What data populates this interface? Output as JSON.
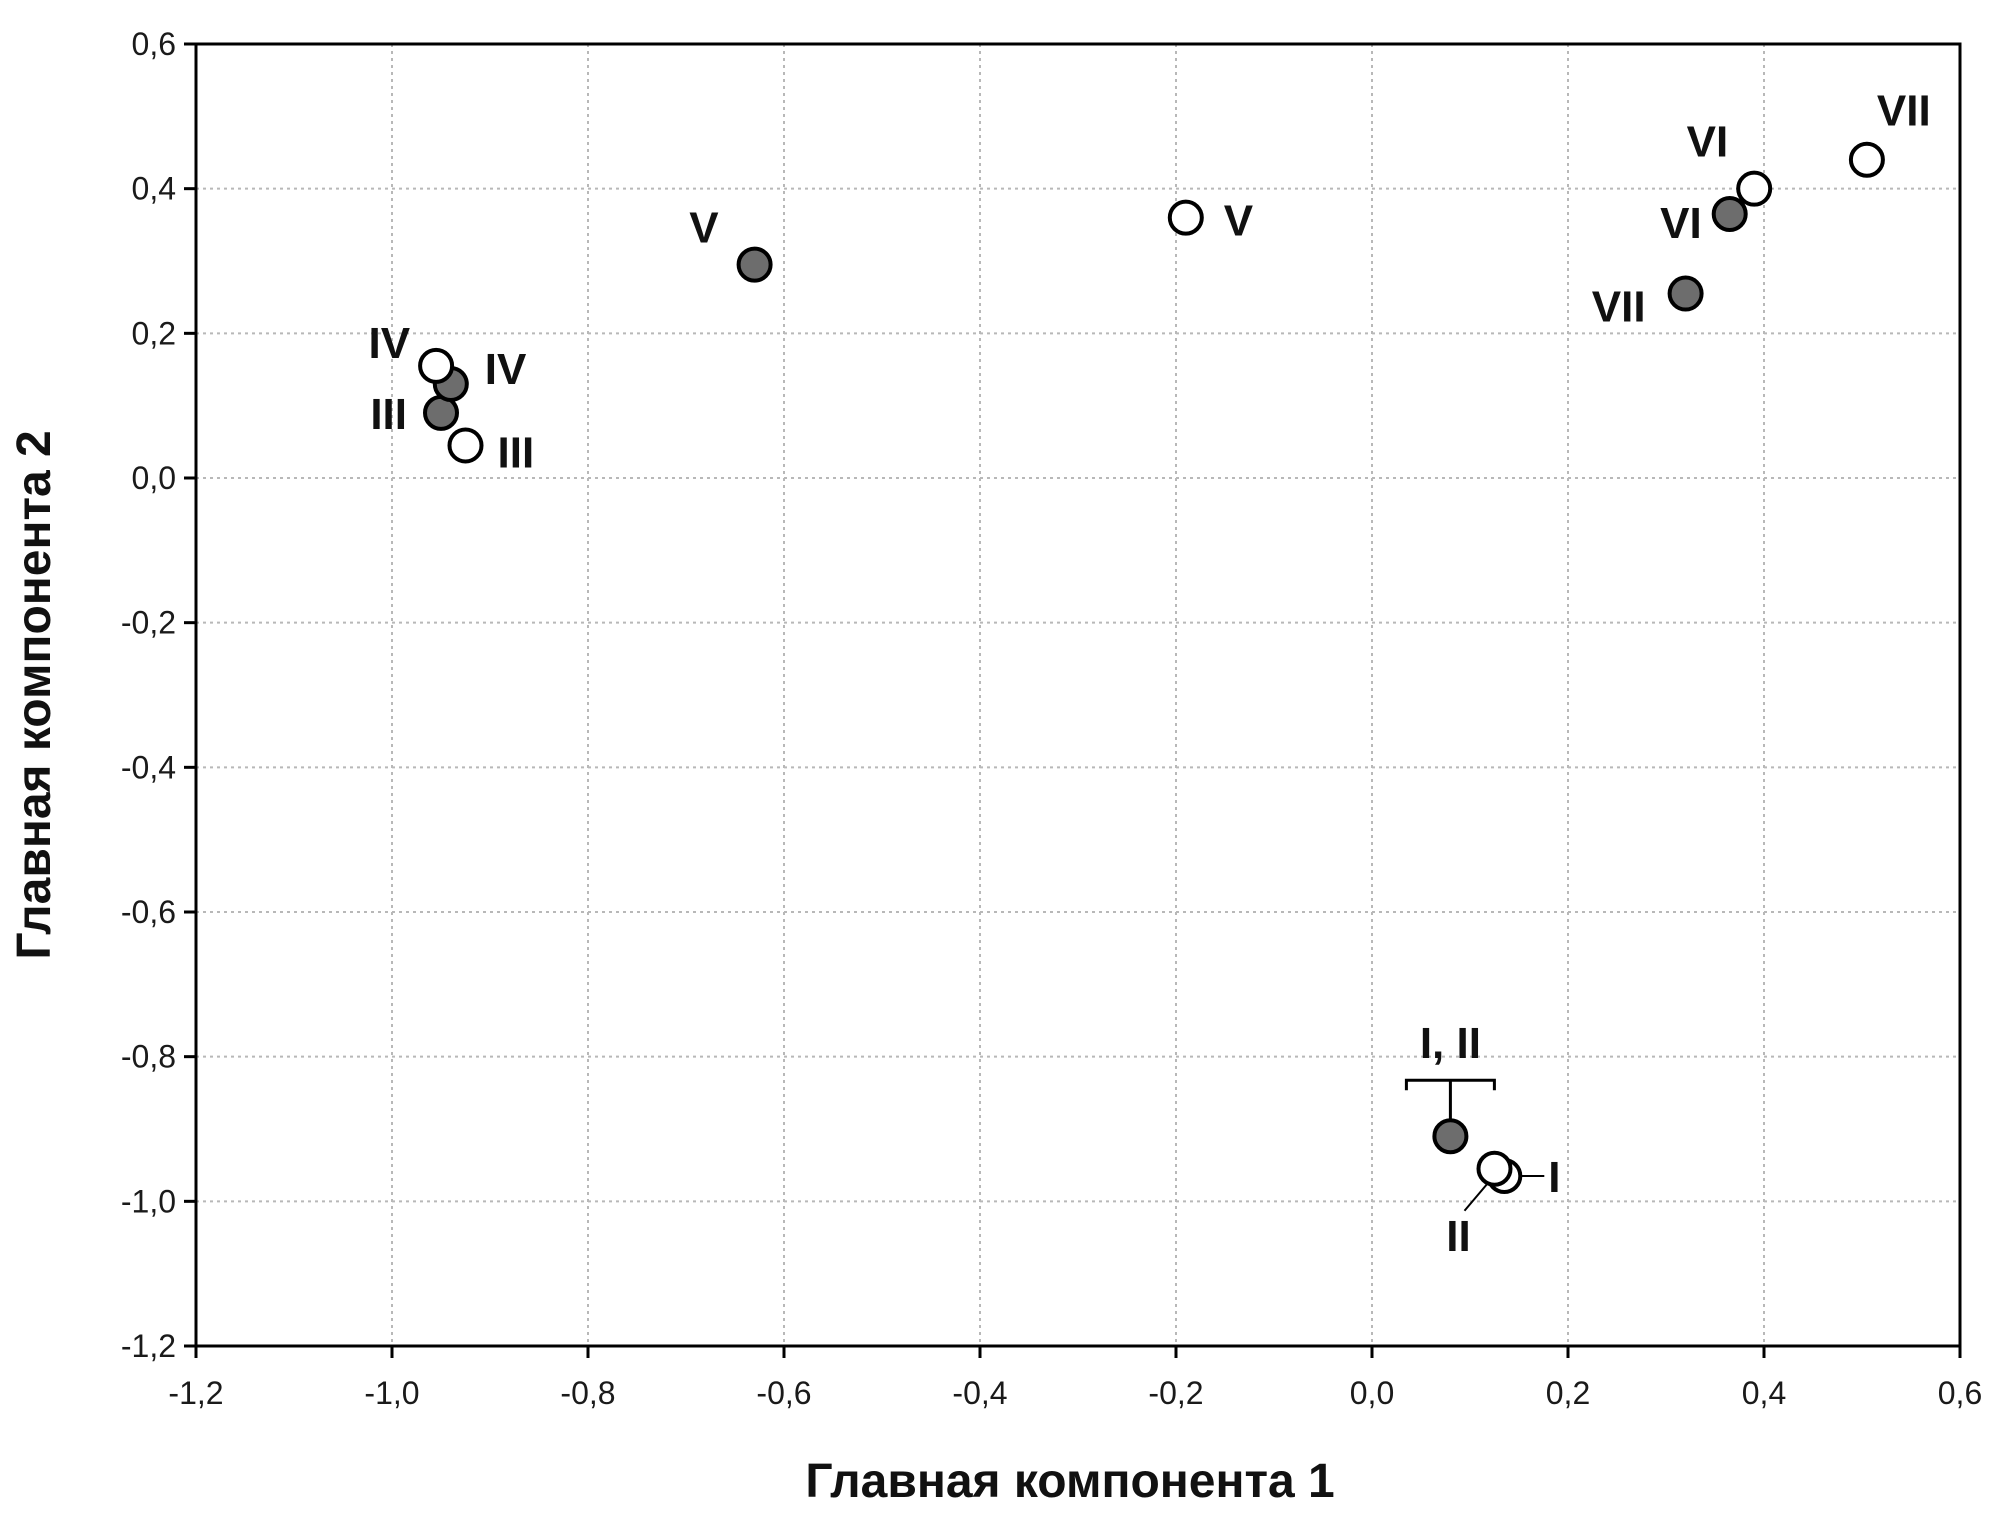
{
  "chart_data": {
    "type": "scatter",
    "xlabel": "Главная компонента 1",
    "ylabel": "Главная компонента 2",
    "xlim": [
      -1.2,
      0.6
    ],
    "ylim": [
      -1.2,
      0.6
    ],
    "x_ticks": [
      "-1,2",
      "-1,0",
      "-0,8",
      "-0,6",
      "-0,4",
      "-0,2",
      "0,0",
      "0,2",
      "0,4",
      "0,6"
    ],
    "y_ticks": [
      "0,6",
      "0,4",
      "0,2",
      "0,0",
      "-0,2",
      "-0,4",
      "-0,6",
      "-0,8",
      "-1,0",
      "-1,2"
    ],
    "grid": true,
    "colors": {
      "filled": "#6d6d6d",
      "open": "#ffffff",
      "stroke": "#000000"
    },
    "series": [
      {
        "marker": "filled",
        "points": [
          {
            "label": "I, II",
            "x": 0.08,
            "y": -0.91
          },
          {
            "label": "III",
            "x": -0.95,
            "y": 0.09
          },
          {
            "label": "IV",
            "x": -0.94,
            "y": 0.13
          },
          {
            "label": "V",
            "x": -0.63,
            "y": 0.295
          },
          {
            "label": "VI",
            "x": 0.365,
            "y": 0.365
          },
          {
            "label": "VII",
            "x": 0.32,
            "y": 0.255
          }
        ]
      },
      {
        "marker": "open",
        "points": [
          {
            "label": "I",
            "x": 0.135,
            "y": -0.965
          },
          {
            "label": "II",
            "x": 0.125,
            "y": -0.955
          },
          {
            "label": "III",
            "x": -0.925,
            "y": 0.045
          },
          {
            "label": "IV",
            "x": -0.955,
            "y": 0.155
          },
          {
            "label": "V",
            "x": -0.19,
            "y": 0.36
          },
          {
            "label": "VI",
            "x": 0.39,
            "y": 0.4
          },
          {
            "label": "VII",
            "x": 0.505,
            "y": 0.44
          }
        ]
      }
    ]
  }
}
